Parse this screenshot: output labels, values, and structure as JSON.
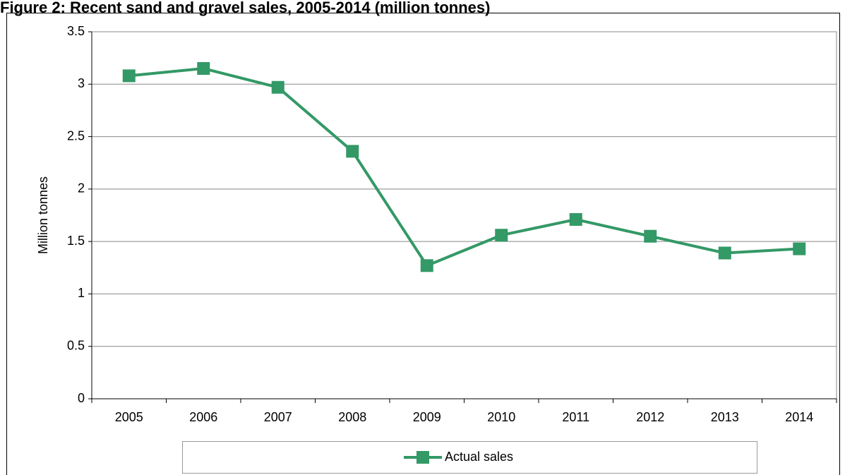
{
  "chart_data": {
    "type": "line",
    "title": "Figure 2: Recent sand and gravel sales, 2005-2014 (million tonnes)",
    "y_label": "Million tonnes",
    "categories": [
      "2005",
      "2006",
      "2007",
      "2008",
      "2009",
      "2010",
      "2011",
      "2012",
      "2013",
      "2014"
    ],
    "series": [
      {
        "name": "Actual sales",
        "color": "#339966",
        "values": [
          3.08,
          3.15,
          2.97,
          2.36,
          1.27,
          1.56,
          1.71,
          1.55,
          1.39,
          1.43
        ]
      }
    ],
    "ylim": [
      0,
      3.5
    ],
    "yticks": [
      0,
      0.5,
      1,
      1.5,
      2,
      2.5,
      3,
      3.5
    ],
    "grid": true,
    "legend": "bottom"
  }
}
